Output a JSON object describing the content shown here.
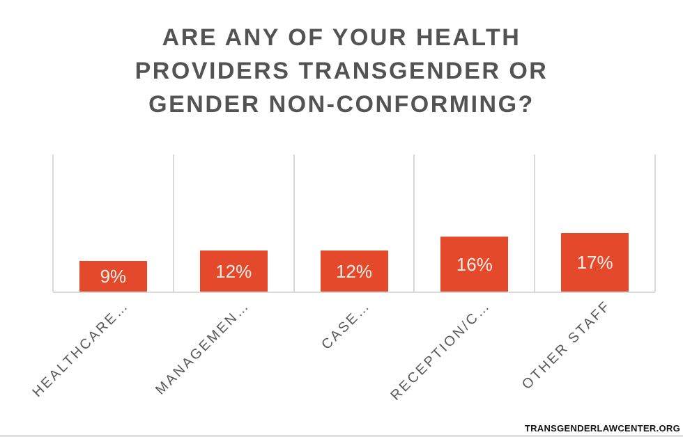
{
  "page": {
    "background": "#FFFFFF",
    "watermark": "TRANSGENDERLAWCENTER.ORG"
  },
  "chart_data": {
    "type": "bar",
    "title": "ARE ANY OF YOUR HEALTH PROVIDERS TRANSGENDER OR GENDER NON-CONFORMING?",
    "title_lines": [
      "ARE ANY OF YOUR HEALTH",
      "PROVIDERS TRANSGENDER OR",
      "GENDER NON-CONFORMING?"
    ],
    "categories": [
      "HEALTHCARE…",
      "MANAGEMEN…",
      "CASE…",
      "RECEPTION/C…",
      "OTHER STAFF"
    ],
    "values": [
      9,
      12,
      12,
      16,
      17
    ],
    "value_labels": [
      "9%",
      "12%",
      "12%",
      "16%",
      "17%"
    ],
    "xlabel": "",
    "ylabel": "",
    "ylim": [
      0,
      40
    ],
    "grid": "vertical-category-boundaries",
    "legend": "none",
    "colors": {
      "bar": "#E5492B",
      "value_label": "#FAEFE8",
      "title": "#535353",
      "category_label": "#595959",
      "gridline": "#D9D9D9",
      "axis_line": "#D9D9D9",
      "watermark_text": "#141414"
    }
  }
}
